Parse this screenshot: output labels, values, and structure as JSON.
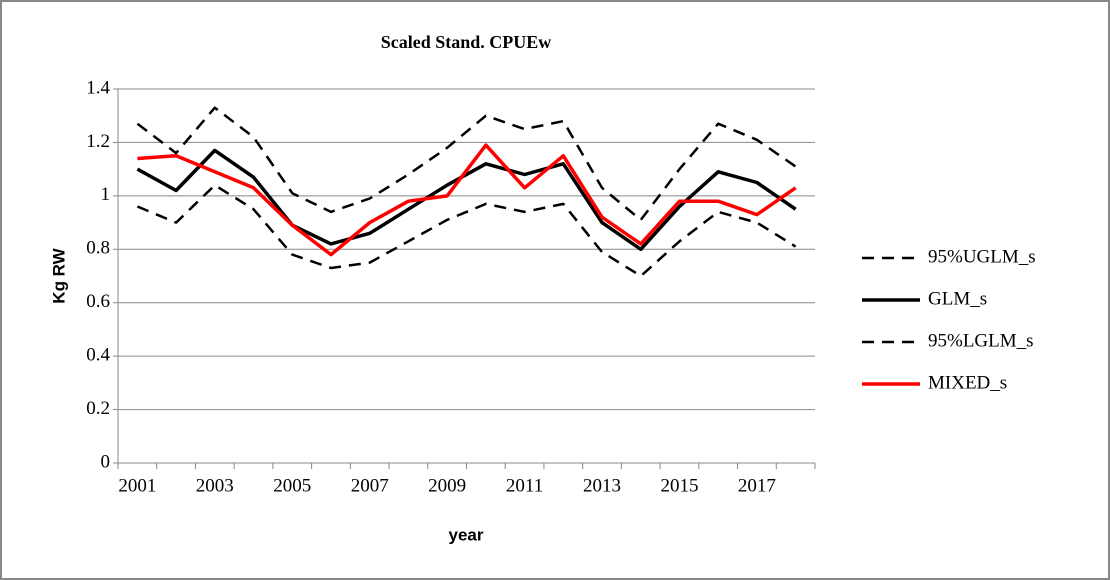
{
  "chart_data": {
    "type": "line",
    "title": "Scaled Stand. CPUEw",
    "x_label": "year",
    "y_label": "Kg RW",
    "categories": [
      "2001",
      null,
      "2003",
      null,
      "2005",
      null,
      "2007",
      null,
      "2009",
      null,
      "2011",
      null,
      "2013",
      null,
      "2015",
      null,
      "2017",
      null
    ],
    "ylim": [
      0,
      1.4
    ],
    "yticks": [
      0,
      0.2,
      0.4,
      0.6,
      0.8,
      1,
      1.2,
      1.4
    ],
    "grid": true,
    "legend": "right",
    "series": [
      {
        "name": "95%UGLM_s",
        "color": "#000000",
        "dashed": true,
        "values": [
          1.27,
          1.16,
          1.33,
          1.22,
          1.01,
          0.94,
          0.99,
          1.08,
          1.18,
          1.3,
          1.25,
          1.28,
          1.03,
          0.91,
          1.1,
          1.27,
          1.21,
          1.11
        ]
      },
      {
        "name": "GLM_s",
        "color": "#000000",
        "dashed": false,
        "values": [
          1.1,
          1.02,
          1.17,
          1.07,
          0.89,
          0.82,
          0.86,
          0.95,
          1.04,
          1.12,
          1.08,
          1.12,
          0.9,
          0.8,
          0.96,
          1.09,
          1.05,
          0.95
        ]
      },
      {
        "name": "95%LGLM_s",
        "color": "#000000",
        "dashed": true,
        "values": [
          0.96,
          0.9,
          1.04,
          0.95,
          0.78,
          0.73,
          0.75,
          0.83,
          0.91,
          0.97,
          0.94,
          0.97,
          0.79,
          0.7,
          0.83,
          0.94,
          0.9,
          0.81
        ]
      },
      {
        "name": "MIXED_s",
        "color": "#ff0000",
        "dashed": false,
        "values": [
          1.14,
          1.15,
          1.09,
          1.03,
          0.89,
          0.78,
          0.9,
          0.98,
          1.0,
          1.19,
          1.03,
          1.15,
          0.92,
          0.82,
          0.98,
          0.98,
          0.93,
          1.03
        ]
      }
    ]
  }
}
